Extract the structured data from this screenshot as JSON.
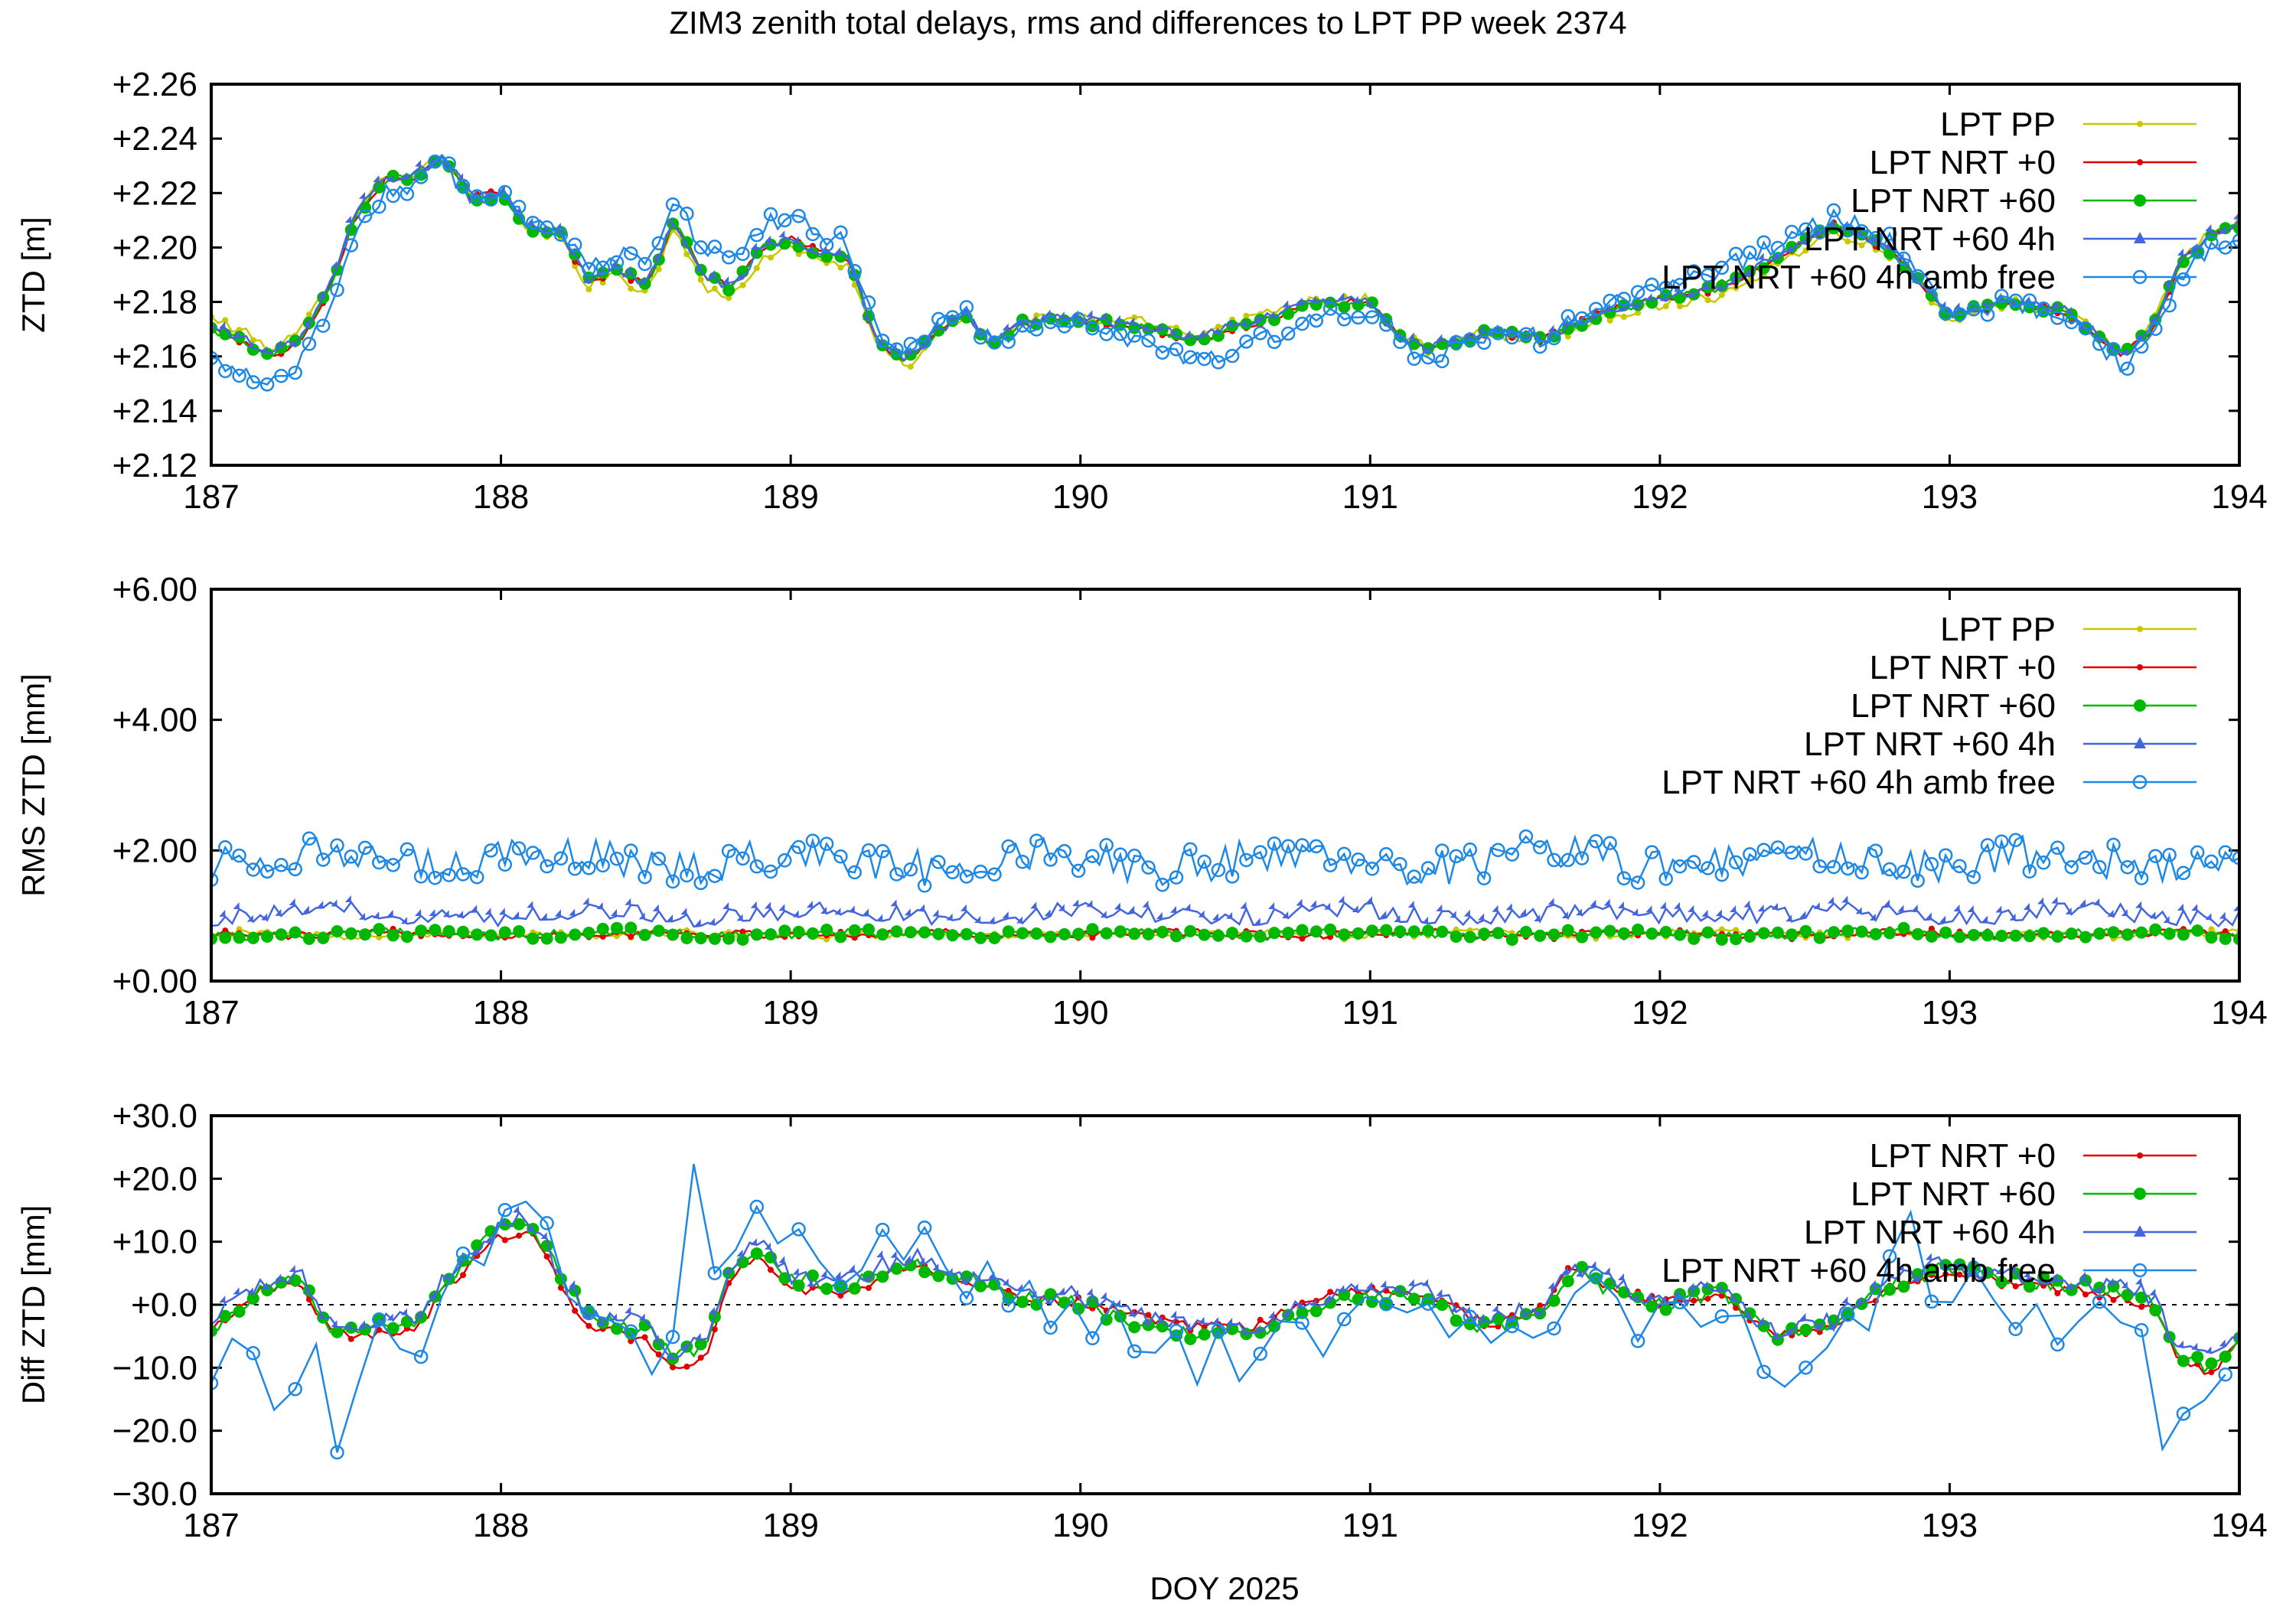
{
  "title": "ZIM3 zenith total delays, rms and differences to LPT PP week 2374",
  "xlabel": "DOY 2025",
  "series_styles": {
    "LPT PP": {
      "color": "#c8c800",
      "marker": "dot"
    },
    "LPT NRT +0": {
      "color": "#e00000",
      "marker": "dot"
    },
    "LPT NRT +60": {
      "color": "#00b800",
      "marker": "circle-filled"
    },
    "LPT NRT +60 4h": {
      "color": "#4466dd",
      "marker": "triangle"
    },
    "LPT NRT +60 4h amb free": {
      "color": "#1e88e5",
      "marker": "circle-open"
    }
  },
  "chart_data": [
    {
      "type": "line",
      "title": "ZIM3 zenith total delays, rms and differences to LPT PP week 2374",
      "xlabel": "",
      "ylabel": "ZTD [m]",
      "xlim": [
        187,
        194
      ],
      "ylim": [
        2.12,
        2.26
      ],
      "xticks": [
        "187",
        "188",
        "189",
        "190",
        "191",
        "192",
        "193",
        "194"
      ],
      "yticks": [
        "+2.12",
        "+2.14",
        "+2.16",
        "+2.18",
        "+2.20",
        "+2.22",
        "+2.24",
        "+2.26"
      ],
      "legend": [
        "LPT PP",
        "LPT NRT +0",
        "LPT NRT +60",
        "LPT NRT +60 4h",
        "LPT NRT +60 4h amb free"
      ],
      "legend_position": "top-right",
      "keypoints": {
        "x": [
          187.0,
          187.1,
          187.2,
          187.3,
          187.4,
          187.5,
          187.6,
          187.7,
          187.8,
          187.9,
          188.0,
          188.1,
          188.2,
          188.3,
          188.4,
          188.5,
          188.6,
          188.7,
          188.8,
          188.9,
          189.0,
          189.1,
          189.2,
          189.3,
          189.4,
          189.5,
          189.6,
          189.7,
          189.8,
          189.9,
          190.0,
          190.2,
          190.4,
          190.6,
          190.8,
          191.0,
          191.1,
          191.2,
          191.3,
          191.4,
          191.6,
          191.8,
          192.0,
          192.2,
          192.4,
          192.6,
          192.7,
          192.8,
          193.0,
          193.2,
          193.4,
          193.6,
          193.7,
          193.8,
          193.9,
          194.0
        ],
        "y": [
          2.17,
          2.166,
          2.16,
          2.165,
          2.183,
          2.212,
          2.225,
          2.226,
          2.233,
          2.218,
          2.22,
          2.207,
          2.206,
          2.188,
          2.192,
          2.186,
          2.21,
          2.19,
          2.185,
          2.2,
          2.203,
          2.198,
          2.196,
          2.165,
          2.158,
          2.168,
          2.176,
          2.164,
          2.172,
          2.174,
          2.173,
          2.171,
          2.166,
          2.172,
          2.179,
          2.18,
          2.167,
          2.162,
          2.165,
          2.169,
          2.166,
          2.176,
          2.181,
          2.185,
          2.196,
          2.208,
          2.204,
          2.199,
          2.175,
          2.18,
          2.176,
          2.16,
          2.17,
          2.195,
          2.204,
          2.208
        ]
      },
      "series": [
        {
          "name": "LPT PP",
          "offset": [
            0.004,
            -0.004,
            0.003,
            -0.003,
            0.002
          ],
          "noise": 0.002
        },
        {
          "name": "LPT NRT +0",
          "offset": [
            0.0,
            0.0,
            0.0,
            0.0,
            0.0
          ],
          "noise": 0.0015
        },
        {
          "name": "LPT NRT +60",
          "offset": [
            0.0,
            0.0,
            0.0,
            0.0,
            0.0
          ],
          "noise": 0.0015
        },
        {
          "name": "LPT NRT +60 4h",
          "offset": [
            0.001,
            0.0,
            0.001,
            0.0,
            0.001
          ],
          "noise": 0.0018
        },
        {
          "name": "LPT NRT +60 4h amb free",
          "offset": [
            -0.012,
            0.01,
            -0.008,
            0.006,
            -0.006
          ],
          "noise": 0.0035
        }
      ]
    },
    {
      "type": "line",
      "ylabel": "RMS ZTD [mm]",
      "xlabel": "",
      "xlim": [
        187,
        194
      ],
      "ylim": [
        0.0,
        6.0
      ],
      "xticks": [
        "187",
        "188",
        "189",
        "190",
        "191",
        "192",
        "193",
        "194"
      ],
      "yticks": [
        "+0.00",
        "+2.00",
        "+4.00",
        "+6.00"
      ],
      "legend": [
        "LPT PP",
        "LPT NRT +0",
        "LPT NRT +60",
        "LPT NRT +60 4h",
        "LPT NRT +60 4h amb free"
      ],
      "legend_position": "top-right",
      "series": [
        {
          "name": "LPT PP",
          "mean": 0.72,
          "amp": 0.06
        },
        {
          "name": "LPT NRT +0",
          "mean": 0.72,
          "amp": 0.06
        },
        {
          "name": "LPT NRT +60",
          "mean": 0.72,
          "amp": 0.07
        },
        {
          "name": "LPT NRT +60 4h",
          "mean": 1.02,
          "amp": 0.14
        },
        {
          "name": "LPT NRT +60 4h amb free",
          "mean": 1.85,
          "amp": 0.28
        }
      ]
    },
    {
      "type": "line",
      "ylabel": "Diff ZTD [mm]",
      "xlabel": "DOY 2025",
      "xlim": [
        187,
        194
      ],
      "ylim": [
        -30.0,
        30.0
      ],
      "xticks": [
        "187",
        "188",
        "189",
        "190",
        "191",
        "192",
        "193",
        "194"
      ],
      "yticks": [
        "−30.0",
        "−20.0",
        "−10.0",
        "+0.0",
        "+10.0",
        "+20.0",
        "+30.0"
      ],
      "reference_line": 0.0,
      "legend": [
        "LPT NRT +0",
        "LPT NRT +60",
        "LPT NRT +60 4h",
        "LPT NRT +60 4h amb free"
      ],
      "legend_position": "top-right",
      "keypoints": {
        "x": [
          187.0,
          187.1,
          187.2,
          187.3,
          187.4,
          187.5,
          187.6,
          187.7,
          187.8,
          187.9,
          188.0,
          188.1,
          188.2,
          188.3,
          188.4,
          188.5,
          188.6,
          188.7,
          188.8,
          188.9,
          189.0,
          189.2,
          189.4,
          189.6,
          189.8,
          190.0,
          190.2,
          190.4,
          190.6,
          190.8,
          191.0,
          191.2,
          191.4,
          191.6,
          191.7,
          191.8,
          192.0,
          192.2,
          192.4,
          192.6,
          192.8,
          193.0,
          193.2,
          193.4,
          193.6,
          193.7,
          193.8,
          193.9,
          194.0
        ],
        "y": [
          -4.0,
          0.0,
          3.0,
          4.0,
          -3.0,
          -5.0,
          -3.0,
          -4.0,
          3.0,
          8.0,
          12.0,
          13.0,
          5.0,
          -2.0,
          -3.0,
          -4.0,
          -8.0,
          -7.0,
          7.0,
          9.0,
          4.0,
          3.0,
          7.0,
          4.0,
          1.0,
          0.0,
          -3.0,
          -5.0,
          -5.0,
          0.0,
          1.0,
          1.0,
          -4.0,
          -1.0,
          6.0,
          3.0,
          0.0,
          2.0,
          -5.0,
          -3.0,
          3.0,
          6.0,
          4.0,
          3.0,
          2.0,
          0.0,
          -8.0,
          -10.0,
          -5.0
        ]
      },
      "series": [
        {
          "name": "LPT NRT +0",
          "offset": [
            0.0,
            -2.0,
            1.5,
            0.0,
            -1.0
          ],
          "noise": 0.8
        },
        {
          "name": "LPT NRT +60",
          "offset": [
            0.0,
            0.0,
            0.0,
            0.0,
            0.0
          ],
          "noise": 1.2
        },
        {
          "name": "LPT NRT +60 4h",
          "offset": [
            1.0,
            0.5,
            1.5,
            0.5,
            1.0
          ],
          "noise": 1.6
        },
        {
          "name": "LPT NRT +60 4h amb free",
          "offset": [
            -8.0,
            6.0,
            -4.0,
            -3.0,
            -6.0
          ],
          "noise": 5.0,
          "extremes": {
            "x": [
              187.25,
              187.45,
              188.65,
              188.55,
              192.45,
              192.85,
              193.75
            ],
            "y": [
              -24.0,
              -26.5,
              27.0,
              -16.0,
              -16.0,
              19.0,
              -27.0
            ]
          }
        }
      ]
    }
  ]
}
